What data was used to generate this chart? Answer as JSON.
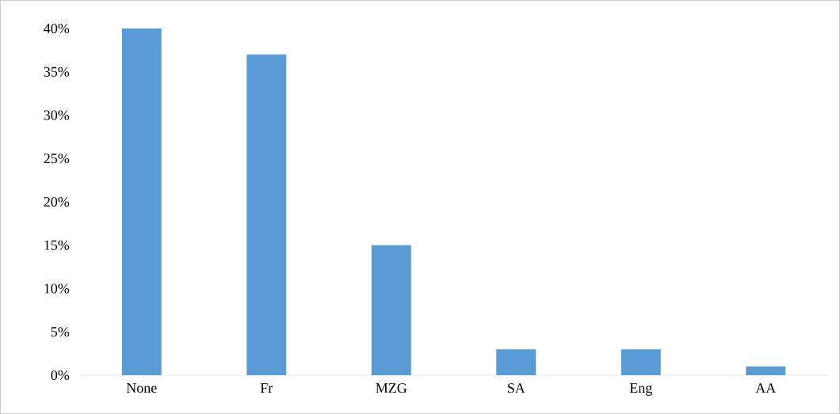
{
  "chart_data": {
    "type": "bar",
    "categories": [
      "None",
      "Fr",
      "MZG",
      "SA",
      "Eng",
      "AA"
    ],
    "values": [
      40,
      37,
      15,
      3,
      3,
      1
    ],
    "color": "#5b9bd5",
    "ylim": [
      0,
      40
    ],
    "yticks": [
      {
        "value": 0,
        "label": "0%"
      },
      {
        "value": 5,
        "label": "5%"
      },
      {
        "value": 10,
        "label": "10%"
      },
      {
        "value": 15,
        "label": "15%"
      },
      {
        "value": 20,
        "label": "20%"
      },
      {
        "value": 25,
        "label": "25%"
      },
      {
        "value": 30,
        "label": "30%"
      },
      {
        "value": 35,
        "label": "35%"
      },
      {
        "value": 40,
        "label": "40%"
      }
    ],
    "grid": false
  }
}
